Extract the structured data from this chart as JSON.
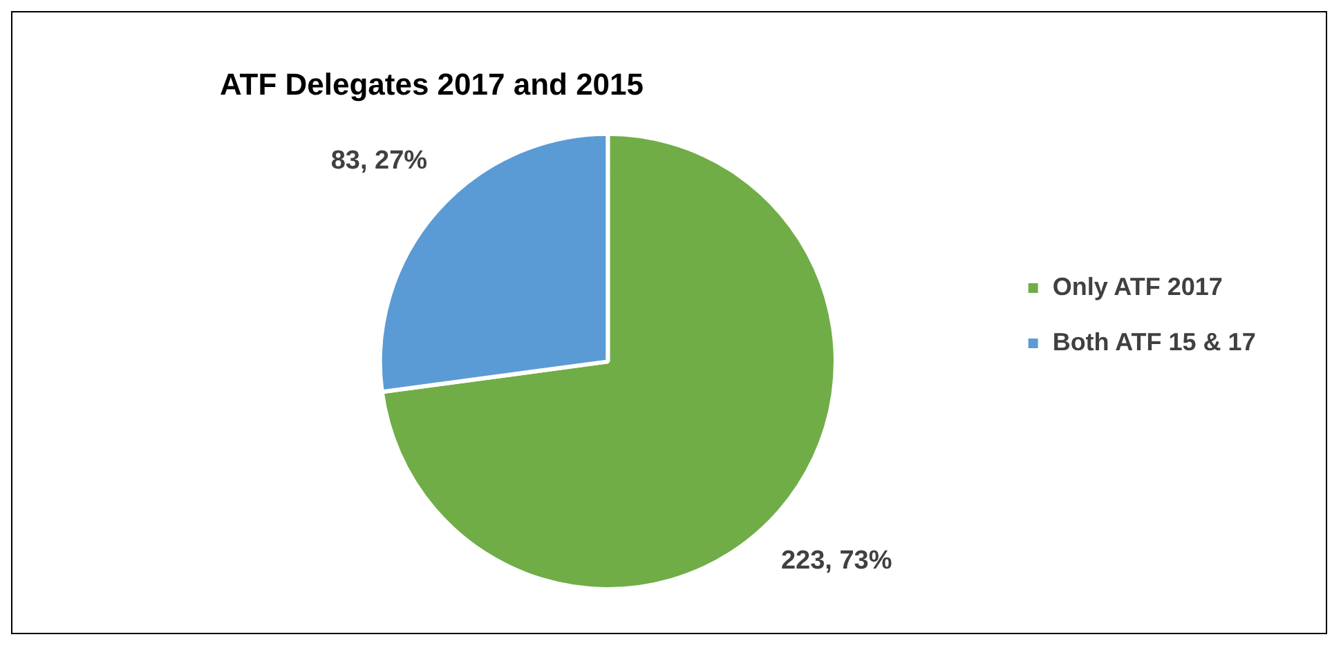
{
  "chart_data": {
    "type": "pie",
    "title": "ATF Delegates 2017 and 2015",
    "categories": [
      "Only ATF 2017",
      "Both ATF 15 & 17"
    ],
    "values": [
      223,
      83
    ],
    "colors": [
      "#70ad47",
      "#5b9bd5"
    ],
    "value_labels": [
      "223, 73%",
      "83, 27%"
    ],
    "legend": "right"
  }
}
